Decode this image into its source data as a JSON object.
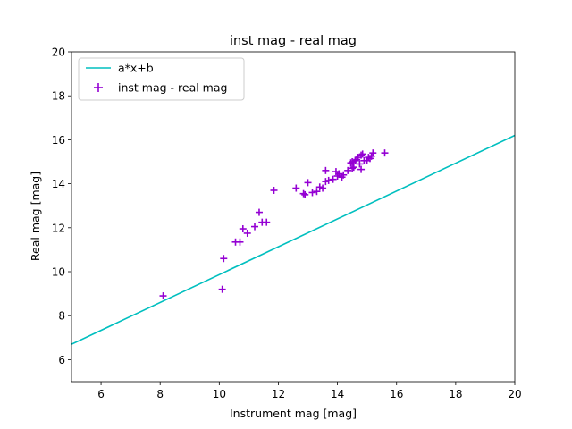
{
  "chart_data": {
    "type": "scatter",
    "title": "inst mag - real mag",
    "xlabel": "Instrument mag [mag]",
    "ylabel": "Real mag [mag]",
    "xlim": [
      5,
      20
    ],
    "ylim": [
      5,
      20
    ],
    "xticks": [
      6,
      8,
      10,
      12,
      14,
      16,
      18,
      20
    ],
    "yticks": [
      6,
      8,
      10,
      12,
      14,
      16,
      18,
      20
    ],
    "grid": false,
    "legend_position": "top-left",
    "series": [
      {
        "name": "a*x+b",
        "kind": "line",
        "color": "#00bfbf",
        "x": [
          5,
          20
        ],
        "y": [
          6.7,
          16.2
        ]
      },
      {
        "name": "inst mag - real mag",
        "kind": "scatter",
        "marker": "+",
        "color": "#9400d3",
        "x": [
          8.1,
          10.1,
          10.15,
          10.55,
          10.7,
          10.8,
          10.95,
          11.2,
          11.35,
          11.45,
          11.6,
          11.85,
          12.6,
          12.85,
          12.9,
          13.0,
          13.15,
          13.3,
          13.4,
          13.5,
          13.6,
          13.6,
          13.7,
          13.85,
          13.95,
          14.0,
          14.05,
          14.15,
          14.2,
          14.35,
          14.45,
          14.5,
          14.5,
          14.55,
          14.6,
          14.65,
          14.7,
          14.75,
          14.8,
          14.8,
          14.85,
          14.9,
          15.0,
          15.05,
          15.1,
          15.15,
          15.2,
          15.6
        ],
        "y": [
          8.9,
          9.2,
          10.6,
          11.35,
          11.35,
          11.95,
          11.75,
          12.05,
          12.7,
          12.25,
          12.25,
          13.7,
          13.8,
          13.55,
          13.5,
          14.05,
          13.6,
          13.65,
          13.85,
          13.8,
          14.1,
          14.6,
          14.15,
          14.2,
          14.55,
          14.35,
          14.45,
          14.3,
          14.4,
          14.6,
          14.95,
          14.7,
          15.0,
          14.75,
          15.05,
          15.1,
          15.2,
          14.9,
          15.3,
          14.65,
          15.35,
          15.05,
          15.05,
          15.2,
          15.15,
          15.25,
          15.4,
          15.4
        ]
      }
    ]
  }
}
